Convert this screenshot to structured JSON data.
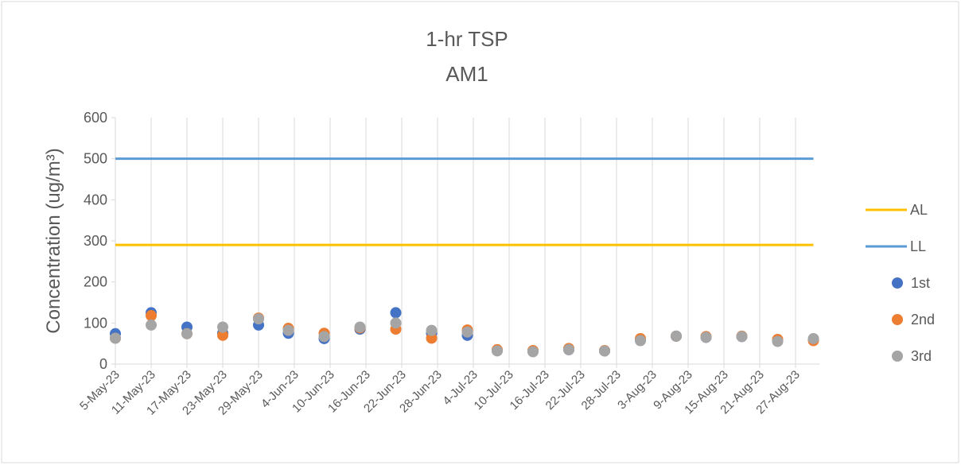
{
  "chart_data": {
    "type": "scatter",
    "title": "1-hr TSP",
    "subtitle": "AM1",
    "y_label": "Concentration (ug/m³)",
    "x": [
      "5-May-23",
      "11-May-23",
      "17-May-23",
      "23-May-23",
      "29-May-23",
      "3-Jun-23",
      "9-Jun-23",
      "15-Jun-23",
      "21-Jun-23",
      "27-Jun-23",
      "3-Jul-23",
      "8-Jul-23",
      "14-Jul-23",
      "20-Jul-23",
      "26-Jul-23",
      "1-Aug-23",
      "7-Aug-23",
      "12-Aug-23",
      "18-Aug-23",
      "24-Aug-23",
      "30-Aug-23"
    ],
    "series": [
      {
        "name": "AL",
        "style": "line",
        "color": "#ffc000",
        "values": [
          290,
          290,
          290,
          290,
          290,
          290,
          290,
          290,
          290,
          290,
          290,
          290,
          290,
          290,
          290,
          290,
          290,
          290,
          290,
          290,
          290
        ]
      },
      {
        "name": "LL",
        "style": "line",
        "color": "#5b9bd5",
        "values": [
          500,
          500,
          500,
          500,
          500,
          500,
          500,
          500,
          500,
          500,
          500,
          500,
          500,
          500,
          500,
          500,
          500,
          500,
          500,
          500,
          500
        ]
      },
      {
        "name": "1st",
        "style": "marker",
        "color": "#4472c4",
        "values": [
          74,
          125,
          90,
          75,
          95,
          75,
          62,
          85,
          125,
          75,
          70,
          33,
          32,
          35,
          32,
          58,
          68,
          65,
          67,
          57,
          60
        ]
      },
      {
        "name": "2nd",
        "style": "marker",
        "color": "#ed7d31",
        "values": [
          63,
          118,
          74,
          70,
          112,
          87,
          75,
          88,
          85,
          63,
          83,
          35,
          33,
          38,
          33,
          62,
          68,
          67,
          68,
          60,
          57
        ]
      },
      {
        "name": "3rd",
        "style": "marker",
        "color": "#a5a5a5",
        "values": [
          63,
          95,
          74,
          90,
          110,
          82,
          67,
          90,
          100,
          82,
          78,
          32,
          30,
          35,
          32,
          57,
          68,
          65,
          67,
          55,
          62
        ]
      }
    ],
    "xlim": [
      "5-May-23",
      "31-Aug-23"
    ],
    "xticks": [
      "5-May-23",
      "11-May-23",
      "17-May-23",
      "23-May-23",
      "29-May-23",
      "4-Jun-23",
      "10-Jun-23",
      "16-Jun-23",
      "22-Jun-23",
      "28-Jun-23",
      "4-Jul-23",
      "10-Jul-23",
      "16-Jul-23",
      "22-Jul-23",
      "28-Jul-23",
      "3-Aug-23",
      "9-Aug-23",
      "15-Aug-23",
      "21-Aug-23",
      "27-Aug-23"
    ],
    "ylim": [
      0,
      600
    ],
    "yticks": [
      0,
      100,
      200,
      300,
      400,
      500,
      600
    ],
    "grid": "x",
    "legend": "right"
  }
}
